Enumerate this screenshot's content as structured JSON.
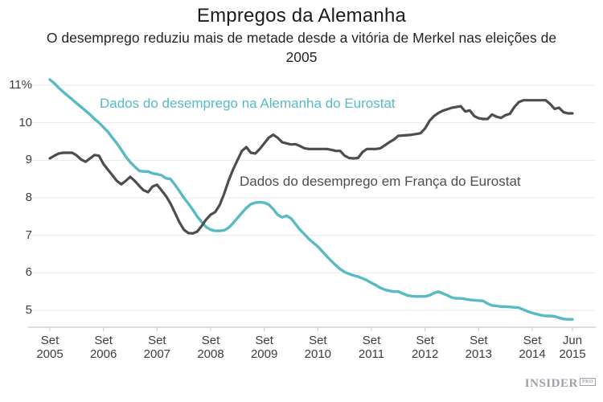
{
  "header": {
    "title": "Empregos da Alemanha",
    "subtitle": "O desemprego reduziu mais de metade desde a vitória de Merkel nas eleições de 2005"
  },
  "branding": {
    "logo_text": "INSIDER",
    "logo_suffix": "PRO"
  },
  "chart_data": {
    "type": "line",
    "title": "Empregos da Alemanha",
    "subtitle": "O desemprego reduziu mais de metade desde a vitória de Merkel nas eleições de 2005",
    "x_unit": "months since Sep 2005 (monthly data, Sep 2005 – Jun 2015)",
    "ylim": [
      4.5,
      11.3
    ],
    "grid": true,
    "grid_color": "#eaeaea",
    "axis_color": "#c8c8c8",
    "text_color": "#3c3c3c",
    "y_ticks": [
      {
        "value": 11,
        "label": "11%"
      },
      {
        "value": 10,
        "label": "10"
      },
      {
        "value": 9,
        "label": "9"
      },
      {
        "value": 8,
        "label": "8"
      },
      {
        "value": 7,
        "label": "7"
      },
      {
        "value": 6,
        "label": "6"
      },
      {
        "value": 5,
        "label": "5"
      }
    ],
    "x_ticks": [
      {
        "m": 0,
        "month": "Set",
        "year": "2005"
      },
      {
        "m": 12,
        "month": "Set",
        "year": "2006"
      },
      {
        "m": 24,
        "month": "Set",
        "year": "2007"
      },
      {
        "m": 36,
        "month": "Set",
        "year": "2008"
      },
      {
        "m": 48,
        "month": "Set",
        "year": "2009"
      },
      {
        "m": 60,
        "month": "Set",
        "year": "2010"
      },
      {
        "m": 72,
        "month": "Set",
        "year": "2011"
      },
      {
        "m": 84,
        "month": "Set",
        "year": "2012"
      },
      {
        "m": 96,
        "month": "Set",
        "year": "2013"
      },
      {
        "m": 108,
        "month": "Set",
        "year": "2014"
      },
      {
        "m": 117,
        "month": "Jun",
        "year": "2015"
      }
    ],
    "series": [
      {
        "name": "germany",
        "label": "Dados do desemprego na Alemanha do Eurostat",
        "color": "#57bac4",
        "stroke_width": 3.4,
        "values": [
          11.15,
          11.05,
          10.93,
          10.82,
          10.72,
          10.62,
          10.52,
          10.42,
          10.32,
          10.22,
          10.1,
          10.0,
          9.88,
          9.76,
          9.6,
          9.45,
          9.28,
          9.1,
          8.95,
          8.83,
          8.72,
          8.7,
          8.7,
          8.65,
          8.63,
          8.6,
          8.52,
          8.5,
          8.35,
          8.18,
          8.0,
          7.85,
          7.68,
          7.5,
          7.35,
          7.22,
          7.15,
          7.12,
          7.12,
          7.13,
          7.2,
          7.32,
          7.46,
          7.6,
          7.73,
          7.83,
          7.87,
          7.88,
          7.87,
          7.82,
          7.7,
          7.55,
          7.48,
          7.52,
          7.45,
          7.3,
          7.15,
          7.03,
          6.9,
          6.8,
          6.7,
          6.57,
          6.44,
          6.32,
          6.2,
          6.1,
          6.02,
          5.97,
          5.93,
          5.9,
          5.85,
          5.8,
          5.73,
          5.67,
          5.6,
          5.55,
          5.52,
          5.5,
          5.5,
          5.45,
          5.4,
          5.38,
          5.37,
          5.37,
          5.37,
          5.4,
          5.46,
          5.5,
          5.45,
          5.4,
          5.34,
          5.32,
          5.32,
          5.3,
          5.28,
          5.27,
          5.26,
          5.25,
          5.18,
          5.13,
          5.12,
          5.1,
          5.1,
          5.09,
          5.08,
          5.07,
          5.02,
          4.97,
          4.93,
          4.9,
          4.87,
          4.85,
          4.85,
          4.84,
          4.8,
          4.77,
          4.76,
          4.76
        ]
      },
      {
        "name": "france",
        "label": "Dados do desemprego em França do Eurostat",
        "color": "#4b4d4e",
        "stroke_width": 3.2,
        "values": [
          9.05,
          9.12,
          9.18,
          9.2,
          9.2,
          9.2,
          9.13,
          9.02,
          8.96,
          9.05,
          9.14,
          9.12,
          8.9,
          8.75,
          8.6,
          8.45,
          8.36,
          8.45,
          8.56,
          8.45,
          8.32,
          8.2,
          8.15,
          8.3,
          8.35,
          8.2,
          8.05,
          7.85,
          7.6,
          7.35,
          7.15,
          7.06,
          7.05,
          7.1,
          7.25,
          7.42,
          7.55,
          7.62,
          7.8,
          8.1,
          8.45,
          8.75,
          9.0,
          9.25,
          9.35,
          9.2,
          9.18,
          9.3,
          9.45,
          9.6,
          9.68,
          9.6,
          9.48,
          9.45,
          9.42,
          9.43,
          9.38,
          9.32,
          9.3,
          9.3,
          9.3,
          9.3,
          9.3,
          9.28,
          9.25,
          9.25,
          9.12,
          9.06,
          9.05,
          9.06,
          9.22,
          9.3,
          9.3,
          9.3,
          9.32,
          9.4,
          9.48,
          9.55,
          9.65,
          9.66,
          9.67,
          9.68,
          9.7,
          9.72,
          9.85,
          10.05,
          10.18,
          10.26,
          10.32,
          10.36,
          10.4,
          10.42,
          10.44,
          10.3,
          10.33,
          10.18,
          10.12,
          10.1,
          10.1,
          10.22,
          10.16,
          10.13,
          10.2,
          10.24,
          10.42,
          10.55,
          10.6,
          10.6,
          10.6,
          10.6,
          10.6,
          10.6,
          10.5,
          10.37,
          10.4,
          10.28,
          10.25,
          10.25
        ]
      }
    ]
  }
}
